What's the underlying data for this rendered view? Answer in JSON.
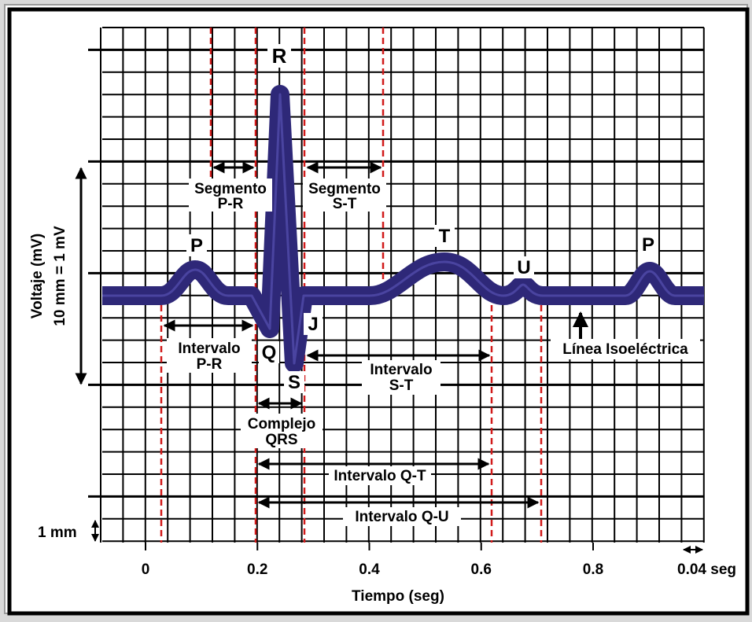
{
  "wave_labels": {
    "r": "R",
    "p1": "P",
    "t": "T",
    "u": "U",
    "p2": "P",
    "q": "Q",
    "s": "S",
    "j": "J"
  },
  "segment_pr": {
    "line1": "Segmento",
    "line2": "P-R"
  },
  "segment_st": {
    "line1": "Segmento",
    "line2": "S-T"
  },
  "interval_pr": {
    "line1": "Intervalo",
    "line2": "P-R"
  },
  "interval_st": {
    "line1": "Intervalo",
    "line2": "S-T"
  },
  "complex_qrs": {
    "line1": "Complejo",
    "line2": "QRS"
  },
  "interval_qt": "Intervalo Q-T",
  "interval_qu": "Intervalo Q-U",
  "isoelectric_line": "Línea Isoeléctrica",
  "y_axis": {
    "line1": "Voltaje (mV)",
    "line2": "10 mm = 1 mV"
  },
  "scale_1mm": "1 mm",
  "scale_004": "0.04 seg",
  "x_axis": {
    "title": "Tiempo (seg)",
    "ticks": [
      "0",
      "0.2",
      "0.4",
      "0.6",
      "0.8"
    ]
  },
  "colors": {
    "trace": "#2e2878",
    "guide": "#d11a1a",
    "grid": "#000000",
    "background": "#ffffff"
  }
}
